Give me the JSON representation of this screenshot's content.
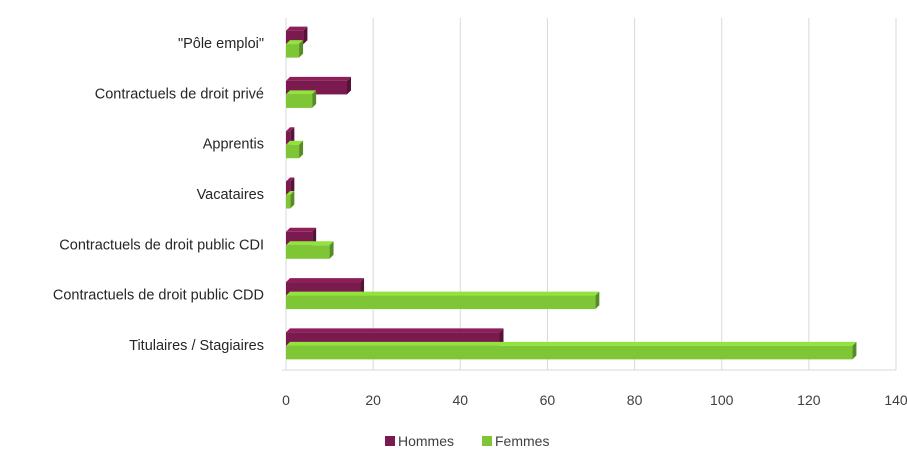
{
  "chart_data": {
    "type": "bar",
    "orientation": "horizontal",
    "style": "3d-clustered",
    "categories": [
      "\"Pôle emploi\"",
      "Contractuels de droit privé",
      "Apprentis",
      "Vacataires",
      "Contractuels de droit public CDI",
      "Contractuels de droit public CDD",
      "Titulaires / Stagiaires"
    ],
    "series": [
      {
        "name": "Hommes",
        "color": "#7b1a4e",
        "values": [
          4,
          14,
          1,
          1,
          6,
          17,
          49
        ]
      },
      {
        "name": "Femmes",
        "color": "#7ec636",
        "values": [
          3,
          6,
          3,
          1,
          10,
          71,
          130
        ]
      }
    ],
    "xlim": [
      0,
      140
    ],
    "xticks": [
      0,
      20,
      40,
      60,
      80,
      100,
      120,
      140
    ],
    "grid": true,
    "legend_position": "bottom",
    "title": "",
    "xlabel": "",
    "ylabel": ""
  }
}
